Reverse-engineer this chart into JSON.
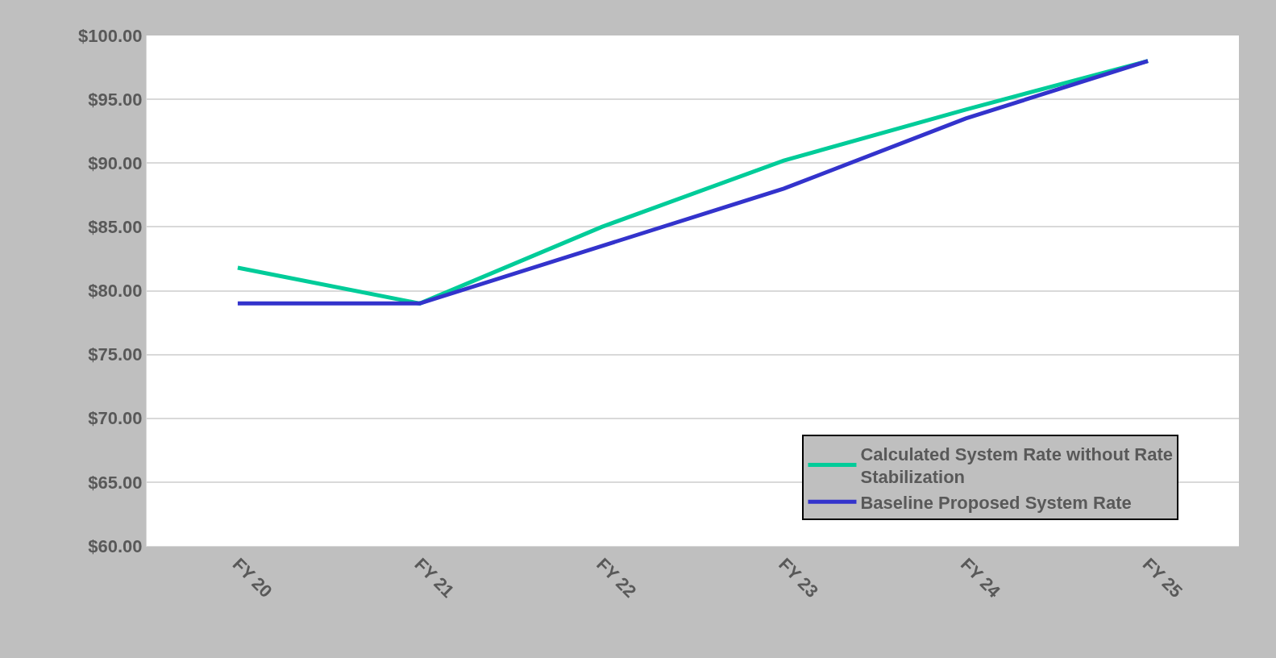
{
  "chart_data": {
    "type": "line",
    "categories": [
      "FY 20",
      "FY 21",
      "FY 22",
      "FY 23",
      "FY 24",
      "FY 25"
    ],
    "series": [
      {
        "name": "Calculated System Rate without Rate Stabilization",
        "color": "#00cc99",
        "values": [
          81.8,
          79.0,
          85.0,
          90.2,
          94.2,
          98.0
        ]
      },
      {
        "name": "Baseline Proposed System Rate",
        "color": "#3333cc",
        "values": [
          79.0,
          79.0,
          83.5,
          88.0,
          93.5,
          98.0
        ]
      }
    ],
    "ylim": [
      60,
      100
    ],
    "yticks": [
      {
        "value": 60,
        "label": "$60.00"
      },
      {
        "value": 65,
        "label": "$65.00"
      },
      {
        "value": 70,
        "label": "$70.00"
      },
      {
        "value": 75,
        "label": "$75.00"
      },
      {
        "value": 80,
        "label": "$80.00"
      },
      {
        "value": 85,
        "label": "$85.00"
      },
      {
        "value": 90,
        "label": "$90.00"
      },
      {
        "value": 95,
        "label": "$95.00"
      },
      {
        "value": 100,
        "label": "$100.00"
      }
    ],
    "grid": "y",
    "legend": "bottom right",
    "marker": "none",
    "line_style": "solid"
  }
}
